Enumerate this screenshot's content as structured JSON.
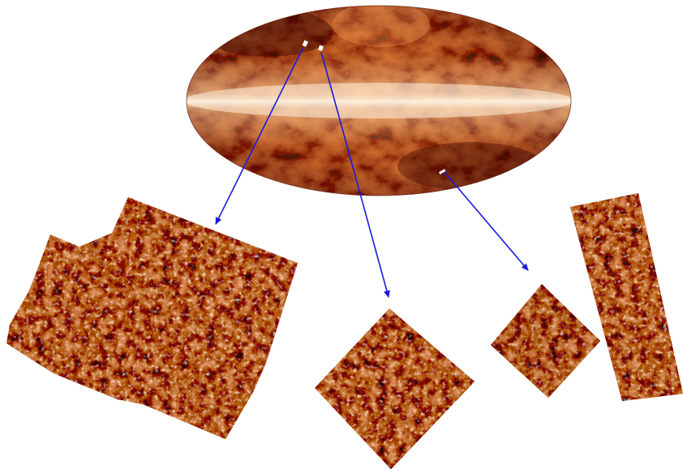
{
  "figure": {
    "sky_map": {
      "projection": "mollweide"
    },
    "field_marks": 3,
    "zoom_panels": [
      {
        "id": "left-field",
        "linked_mark": 1
      },
      {
        "id": "center-field",
        "linked_mark": 2
      },
      {
        "id": "right-field-small",
        "linked_mark": 3
      },
      {
        "id": "right-field-tall",
        "linked_mark": 3
      }
    ]
  },
  "colors": {
    "arrow": "#1a1adf",
    "map_dark": "#3a0400",
    "map_mid": "#b23a06",
    "map_bright": "#f07a2a",
    "map_light": "#ffe4c4",
    "mark": "#ffffff",
    "background": "#ffffff"
  }
}
